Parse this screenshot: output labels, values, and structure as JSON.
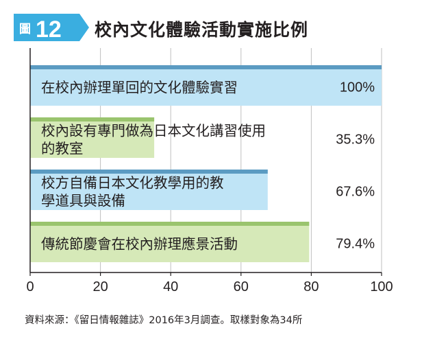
{
  "figure": {
    "label": "圖",
    "number": "12",
    "title": "校內文化體驗活動實施比例"
  },
  "chart_data": {
    "type": "bar",
    "orientation": "horizontal",
    "categories": [
      [
        "在校內辦理單回的文化體驗實習"
      ],
      [
        "校內設有專門做為日本文化講習使用",
        "的教室"
      ],
      [
        "校方自備日本文化教學用的教",
        "學道具與設備"
      ],
      [
        "傳統節慶會在校內辦理應景活動"
      ]
    ],
    "values": [
      100,
      35.3,
      67.6,
      79.4
    ],
    "value_labels": [
      "100%",
      "35.3%",
      "67.6%",
      "79.4%"
    ],
    "bar_colors": [
      "#bfe4f6",
      "#d6e9b8",
      "#bfe4f6",
      "#d6e9b8"
    ],
    "bar_top_colors": [
      "#5b9bc2",
      "#9ac46e",
      "#5b9bc2",
      "#9ac46e"
    ],
    "xlim": [
      0,
      100
    ],
    "xticks": [
      "0",
      "20",
      "40",
      "60",
      "80",
      "100"
    ],
    "grid": true,
    "xlabel": "",
    "ylabel": ""
  },
  "source": "資料來源：《留日情報雜誌》2016年3月調查。取樣對象為34所",
  "colors": {
    "badge": "#3aaee0",
    "badge_text": "#ffffff",
    "grid": "#bfbfbf",
    "axis": "#231f20"
  }
}
